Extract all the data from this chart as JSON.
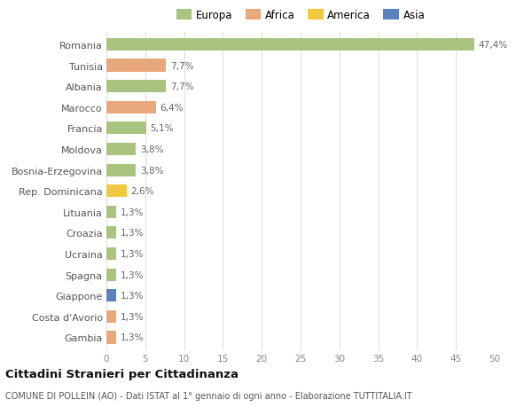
{
  "countries": [
    "Romania",
    "Tunisia",
    "Albania",
    "Marocco",
    "Francia",
    "Moldova",
    "Bosnia-Erzegovina",
    "Rep. Dominicana",
    "Lituania",
    "Croazia",
    "Ucraina",
    "Spagna",
    "Giappone",
    "Costa d'Avorio",
    "Gambia"
  ],
  "values": [
    47.4,
    7.7,
    7.7,
    6.4,
    5.1,
    3.8,
    3.8,
    2.6,
    1.3,
    1.3,
    1.3,
    1.3,
    1.3,
    1.3,
    1.3
  ],
  "labels": [
    "47,4%",
    "7,7%",
    "7,7%",
    "6,4%",
    "5,1%",
    "3,8%",
    "3,8%",
    "2,6%",
    "1,3%",
    "1,3%",
    "1,3%",
    "1,3%",
    "1,3%",
    "1,3%",
    "1,3%"
  ],
  "continents": [
    "Europa",
    "Africa",
    "Europa",
    "Africa",
    "Europa",
    "Europa",
    "Europa",
    "America",
    "Europa",
    "Europa",
    "Europa",
    "Europa",
    "Asia",
    "Africa",
    "Africa"
  ],
  "continent_colors": {
    "Europa": "#a8c47e",
    "Africa": "#e8a87c",
    "America": "#f0c940",
    "Asia": "#5b82c0"
  },
  "legend_order": [
    "Europa",
    "Africa",
    "America",
    "Asia"
  ],
  "legend_colors": [
    "#a8c47e",
    "#e8a87c",
    "#f0c940",
    "#5b82c0"
  ],
  "xlim": [
    0,
    50
  ],
  "xticks": [
    0,
    5,
    10,
    15,
    20,
    25,
    30,
    35,
    40,
    45,
    50
  ],
  "title": "Cittadini Stranieri per Cittadinanza",
  "subtitle": "COMUNE DI POLLEIN (AO) - Dati ISTAT al 1° gennaio di ogni anno - Elaborazione TUTTITALIA.IT",
  "bg_color": "#ffffff",
  "grid_color": "#e0e0e0",
  "bar_height": 0.6
}
